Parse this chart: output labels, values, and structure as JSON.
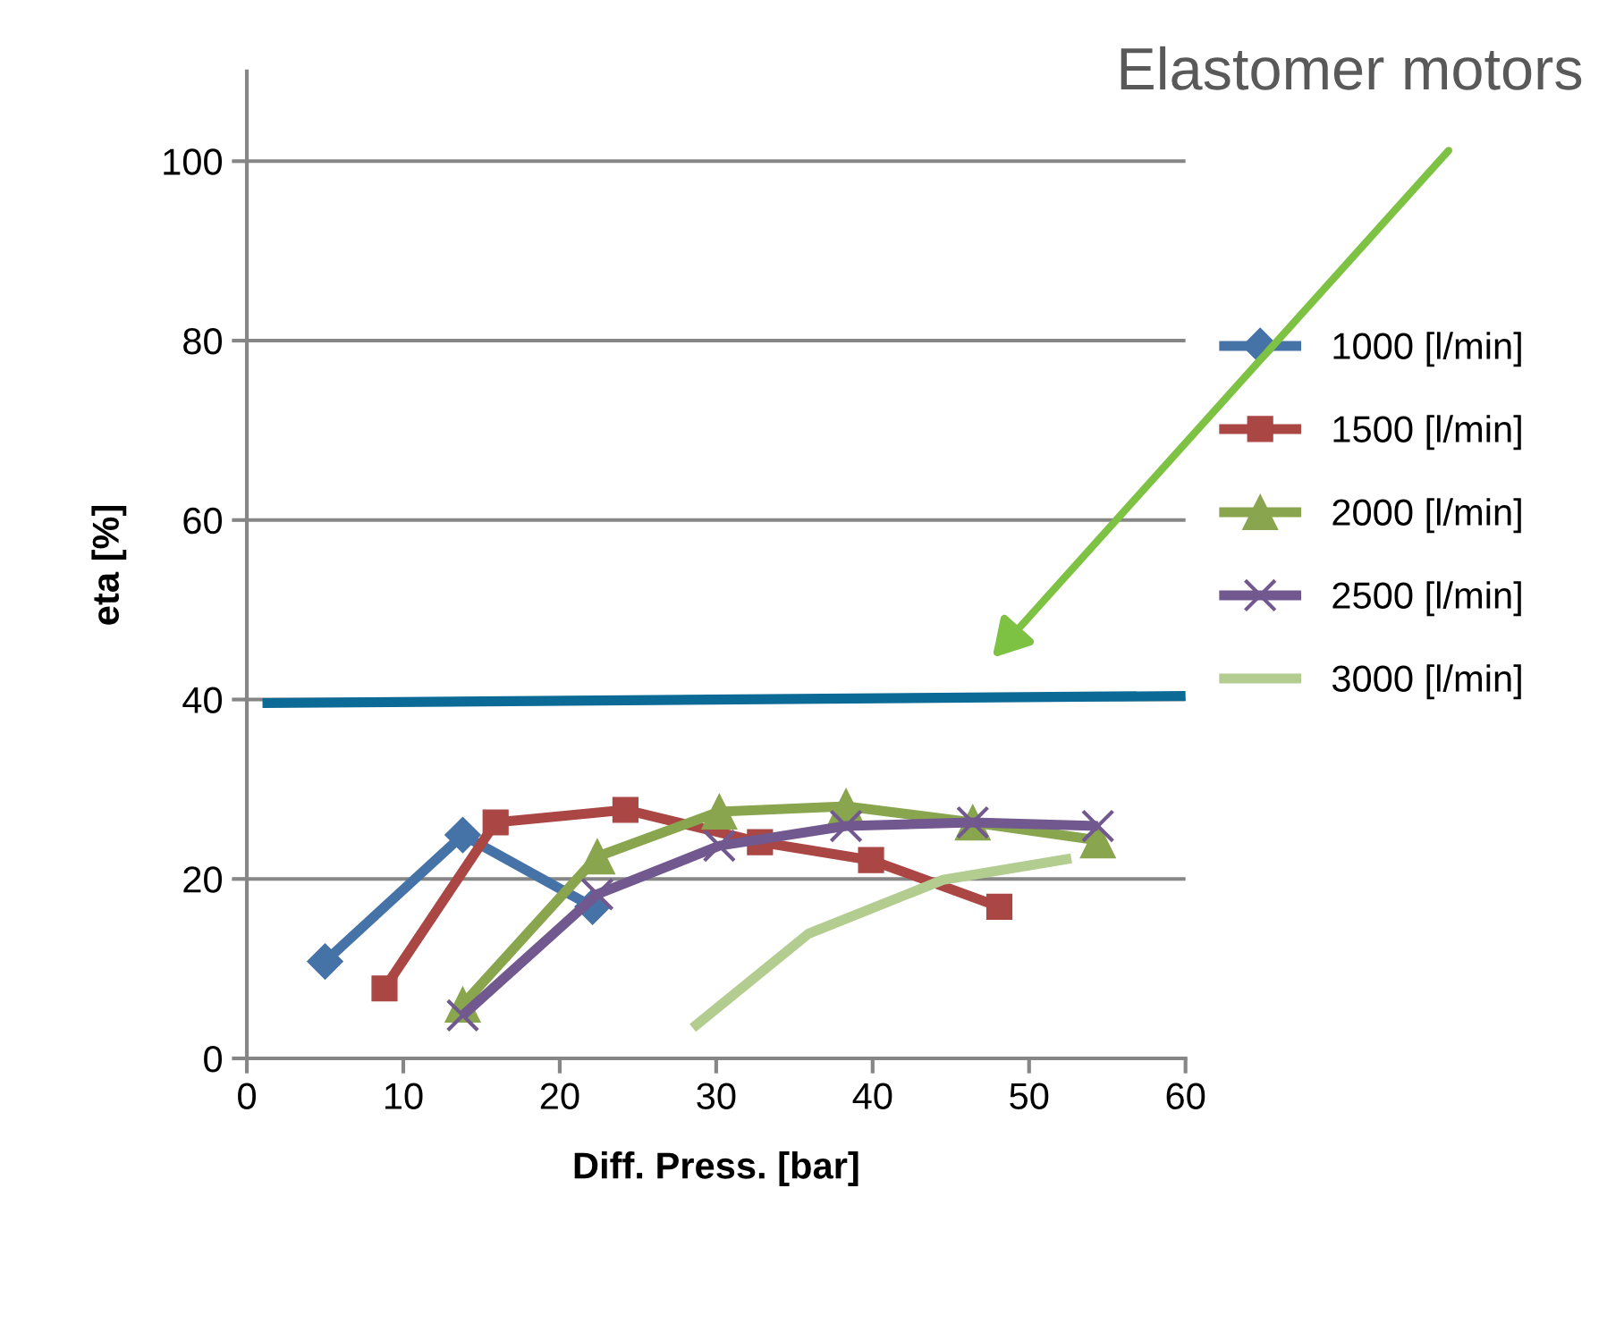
{
  "chart_data": {
    "type": "line",
    "xlabel": "Diff. Press. [bar]",
    "ylabel": "eta [%]",
    "xlim": [
      0,
      60
    ],
    "ylim": [
      0,
      110
    ],
    "xticks": [
      0,
      10,
      20,
      30,
      40,
      50,
      60
    ],
    "yticks": [
      0,
      20,
      40,
      60,
      80,
      100
    ],
    "grid": "y",
    "legend": "right",
    "annotations": [
      "Elastomer motors"
    ],
    "series": [
      {
        "name": "1000 [l/min]",
        "color": "#4572a7",
        "marker": "diamond",
        "x": [
          5.0,
          13.8,
          22.1
        ],
        "values": [
          10.8,
          24.9,
          16.9
        ]
      },
      {
        "name": "1500 [l/min]",
        "color": "#aa4643",
        "marker": "square",
        "x": [
          8.8,
          15.9,
          24.2,
          32.8,
          39.9,
          48.1
        ],
        "values": [
          7.8,
          26.3,
          27.7,
          24.1,
          22.1,
          16.9
        ]
      },
      {
        "name": "2000 [l/min]",
        "color": "#89a54e",
        "marker": "triangle",
        "x": [
          13.8,
          22.4,
          30.2,
          38.3,
          46.4,
          54.4
        ],
        "values": [
          6.0,
          22.5,
          27.5,
          28.1,
          26.3,
          24.3
        ]
      },
      {
        "name": "2500 [l/min]",
        "color": "#71588f",
        "marker": "cross",
        "x": [
          13.8,
          22.4,
          30.2,
          38.3,
          46.4,
          54.4
        ],
        "values": [
          4.8,
          18.3,
          23.7,
          25.9,
          26.3,
          25.9
        ]
      },
      {
        "name": "3000 [l/min]",
        "color": "#b3cc8f",
        "marker": "none",
        "x": [
          28.5,
          35.9,
          44.5,
          52.7
        ],
        "values": [
          3.4,
          13.9,
          19.9,
          22.3
        ]
      },
      {
        "color": "#0b6a96",
        "marker": "none",
        "x": [
          1,
          60
        ],
        "values": [
          39.6,
          40.4
        ]
      }
    ]
  }
}
